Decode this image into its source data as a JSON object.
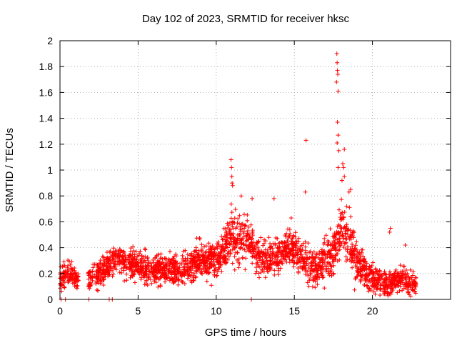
{
  "chart_data": {
    "type": "scatter",
    "title": "Day 102 of 2023, SRMTID for receiver hksc",
    "xlabel": "GPS time / hours",
    "ylabel": "SRMTID / TECUs",
    "xlim": [
      0,
      25
    ],
    "ylim": [
      0,
      2
    ],
    "grid": true,
    "marker": "+",
    "color": "#ff0000",
    "xticks": [
      0,
      5,
      10,
      15,
      20
    ],
    "yticks": [
      0,
      0.2,
      0.4,
      0.6,
      0.8,
      1,
      1.2,
      1.4,
      1.6,
      1.8,
      2
    ],
    "xtick_labels": [
      "0",
      "5",
      "10",
      "15",
      "20"
    ],
    "ytick_labels": [
      "0",
      "0.2",
      "0.4",
      "0.6",
      "0.8",
      "1",
      "1.2",
      "1.4",
      "1.6",
      "1.8",
      "2"
    ],
    "baseline": [
      [
        0.0,
        0.15
      ],
      [
        0.5,
        0.2
      ],
      [
        1.0,
        0.18
      ],
      [
        1.5,
        0.12
      ],
      [
        2.0,
        0.15
      ],
      [
        2.5,
        0.22
      ],
      [
        3.0,
        0.25
      ],
      [
        3.5,
        0.32
      ],
      [
        4.0,
        0.3
      ],
      [
        4.5,
        0.28
      ],
      [
        5.0,
        0.27
      ],
      [
        5.5,
        0.25
      ],
      [
        6.0,
        0.22
      ],
      [
        6.5,
        0.22
      ],
      [
        7.0,
        0.23
      ],
      [
        7.5,
        0.24
      ],
      [
        8.0,
        0.25
      ],
      [
        8.5,
        0.27
      ],
      [
        9.0,
        0.3
      ],
      [
        9.5,
        0.3
      ],
      [
        10.0,
        0.3
      ],
      [
        10.5,
        0.38
      ],
      [
        11.0,
        0.5
      ],
      [
        11.5,
        0.45
      ],
      [
        12.0,
        0.48
      ],
      [
        12.5,
        0.35
      ],
      [
        13.0,
        0.3
      ],
      [
        13.5,
        0.32
      ],
      [
        14.0,
        0.33
      ],
      [
        14.5,
        0.4
      ],
      [
        15.0,
        0.38
      ],
      [
        15.5,
        0.32
      ],
      [
        16.0,
        0.25
      ],
      [
        16.5,
        0.22
      ],
      [
        17.0,
        0.3
      ],
      [
        17.5,
        0.35
      ],
      [
        18.0,
        0.55
      ],
      [
        18.5,
        0.45
      ],
      [
        19.0,
        0.3
      ],
      [
        19.5,
        0.22
      ],
      [
        20.0,
        0.17
      ],
      [
        20.5,
        0.12
      ],
      [
        21.0,
        0.1
      ],
      [
        21.5,
        0.15
      ],
      [
        22.0,
        0.15
      ],
      [
        22.5,
        0.12
      ],
      [
        22.8,
        0.12
      ]
    ],
    "spread": [
      [
        0.0,
        0.08
      ],
      [
        3.0,
        0.1
      ],
      [
        10.5,
        0.12
      ],
      [
        11.0,
        0.18
      ],
      [
        12.0,
        0.15
      ],
      [
        15.0,
        0.12
      ],
      [
        17.5,
        0.15
      ],
      [
        18.5,
        0.18
      ],
      [
        20.0,
        0.1
      ],
      [
        22.8,
        0.08
      ]
    ],
    "outliers": [
      [
        0.07,
        0.0
      ],
      [
        0.35,
        0.0
      ],
      [
        1.85,
        0.0
      ],
      [
        3.15,
        0.0
      ],
      [
        3.35,
        0.0
      ],
      [
        12.25,
        0.0
      ],
      [
        10.95,
        1.08
      ],
      [
        10.98,
        1.02
      ],
      [
        11.0,
        0.95
      ],
      [
        11.02,
        0.9
      ],
      [
        11.05,
        0.88
      ],
      [
        11.6,
        0.8
      ],
      [
        12.3,
        0.78
      ],
      [
        13.7,
        0.78
      ],
      [
        14.8,
        0.63
      ],
      [
        15.75,
        1.23
      ],
      [
        15.7,
        0.83
      ],
      [
        17.72,
        1.9
      ],
      [
        17.74,
        1.83
      ],
      [
        17.76,
        1.77
      ],
      [
        17.78,
        1.74
      ],
      [
        17.7,
        1.68
      ],
      [
        17.8,
        1.61
      ],
      [
        17.76,
        1.37
      ],
      [
        17.8,
        1.27
      ],
      [
        17.74,
        1.21
      ],
      [
        17.85,
        1.15
      ],
      [
        18.2,
        1.16
      ],
      [
        18.1,
        1.05
      ],
      [
        18.15,
        1.02
      ],
      [
        18.2,
        0.95
      ],
      [
        18.05,
        0.92
      ],
      [
        17.8,
        1.02
      ],
      [
        18.6,
        0.85
      ],
      [
        18.5,
        0.83
      ],
      [
        21.15,
        0.55
      ],
      [
        21.1,
        0.52
      ],
      [
        22.1,
        0.42
      ]
    ],
    "n_points": 2600,
    "time_range": [
      0,
      22.8
    ]
  }
}
